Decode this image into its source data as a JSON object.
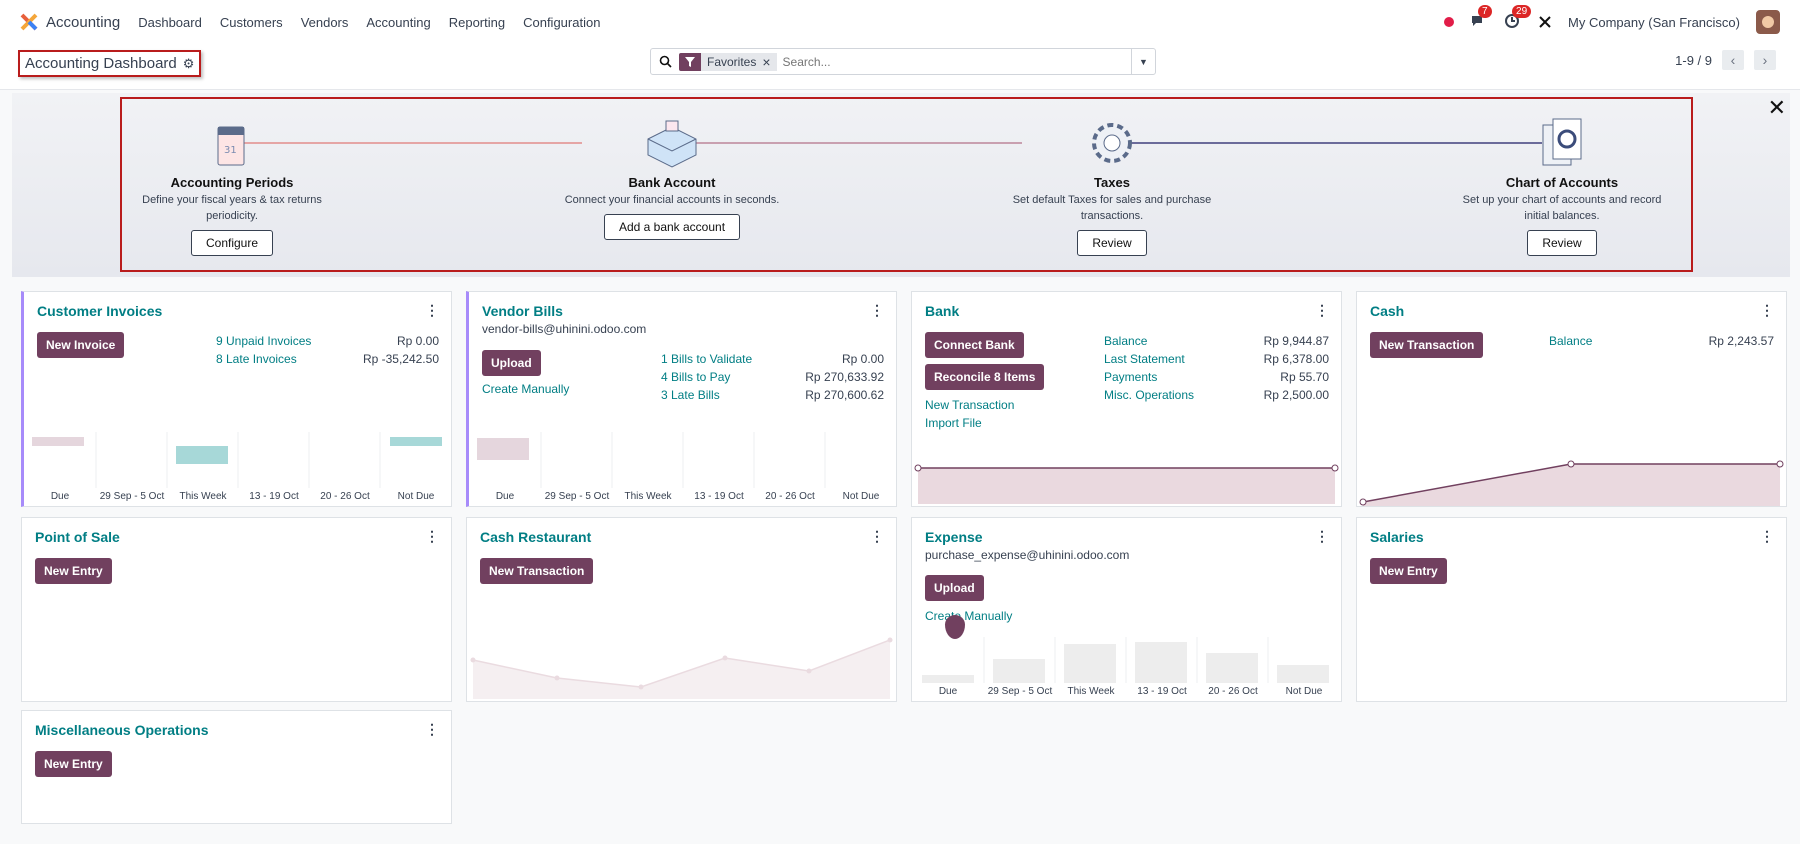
{
  "topbar": {
    "app": "Accounting",
    "menu": [
      "Dashboard",
      "Customers",
      "Vendors",
      "Accounting",
      "Reporting",
      "Configuration"
    ],
    "msg_count": "7",
    "activity_count": "29",
    "company": "My Company (San Francisco)"
  },
  "control": {
    "breadcrumb": "Accounting Dashboard",
    "facet": "Favorites",
    "search_placeholder": "Search...",
    "pager": "1-9 / 9"
  },
  "onboarding": {
    "steps": [
      {
        "title": "Accounting Periods",
        "desc": "Define your fiscal years & tax returns periodicity.",
        "button": "Configure"
      },
      {
        "title": "Bank Account",
        "desc": "Connect your financial accounts in seconds.",
        "button": "Add a bank account"
      },
      {
        "title": "Taxes",
        "desc": "Set default Taxes for sales and purchase transactions.",
        "button": "Review"
      },
      {
        "title": "Chart of Accounts",
        "desc": "Set up your chart of accounts and record initial balances.",
        "button": "Review"
      }
    ]
  },
  "colors": {
    "primary": "#71405f",
    "link": "#017e84",
    "accent": "#a78bfa"
  },
  "aging_labels": [
    "Due",
    "29 Sep - 5 Oct",
    "This Week",
    "13 - 19 Oct",
    "20 - 26 Oct",
    "Not Due"
  ],
  "cards": {
    "customer_invoices": {
      "title": "Customer Invoices",
      "button": "New Invoice",
      "rows": [
        {
          "label": "9 Unpaid Invoices",
          "amount": "Rp 0.00"
        },
        {
          "label": "8 Late Invoices",
          "amount": "Rp -35,242.50"
        }
      ]
    },
    "vendor_bills": {
      "title": "Vendor Bills",
      "email": "vendor-bills@uhinini.odoo.com",
      "button": "Upload",
      "create": "Create Manually",
      "rows": [
        {
          "label": "1 Bills to Validate",
          "amount": "Rp 0.00"
        },
        {
          "label": "4 Bills to Pay",
          "amount": "Rp 270,633.92"
        },
        {
          "label": "3 Late Bills",
          "amount": "Rp 270,600.62"
        }
      ]
    },
    "bank": {
      "title": "Bank",
      "button1": "Connect Bank",
      "button2": "Reconcile 8 Items",
      "link1": "New Transaction",
      "link2": "Import File",
      "rows": [
        {
          "label": "Balance",
          "amount": "Rp 9,944.87"
        },
        {
          "label": "Last Statement",
          "amount": "Rp 6,378.00"
        },
        {
          "label": "Payments",
          "amount": "Rp 55.70"
        },
        {
          "label": "Misc. Operations",
          "amount": "Rp 2,500.00"
        }
      ]
    },
    "cash": {
      "title": "Cash",
      "button": "New Transaction",
      "rows": [
        {
          "label": "Balance",
          "amount": "Rp 2,243.57"
        }
      ]
    },
    "pos": {
      "title": "Point of Sale",
      "button": "New Entry"
    },
    "cash_restaurant": {
      "title": "Cash Restaurant",
      "button": "New Transaction"
    },
    "expense": {
      "title": "Expense",
      "email": "purchase_expense@uhinini.odoo.com",
      "button": "Upload",
      "create": "Create Manually"
    },
    "salaries": {
      "title": "Salaries",
      "button": "New Entry"
    },
    "misc": {
      "title": "Miscellaneous Operations",
      "button": "New Entry"
    }
  }
}
